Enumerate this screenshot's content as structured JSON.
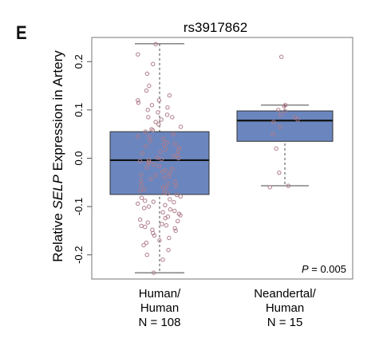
{
  "panel_label": "E",
  "chart_data": {
    "type": "box",
    "title": "rs3917862",
    "ylabel_pre": "Relative ",
    "ylabel_italic": "SELP",
    "ylabel_post": " Expression in Artery",
    "ylim": [
      -0.25,
      0.25
    ],
    "yticks": [
      "-0.2",
      "-0.1",
      "0.0",
      "0.1",
      "0.2"
    ],
    "ytick_values": [
      -0.2,
      -0.1,
      0.0,
      0.1,
      0.2
    ],
    "annotation_italic": "P",
    "annotation_rest": " = 0.005",
    "box_color": "#6b86be",
    "point_color": "#b07c8a",
    "groups": [
      {
        "label_lines": [
          "Human/",
          "Human",
          "N = 108"
        ],
        "whisker_low": -0.237,
        "q1": -0.075,
        "median": -0.004,
        "q3": 0.055,
        "whisker_high": 0.237,
        "points": [
          0.236,
          0.215,
          0.195,
          0.175,
          0.15,
          0.14,
          0.13,
          0.12,
          0.115,
          0.11,
          0.105,
          0.1,
          0.095,
          0.09,
          0.085,
          0.08,
          0.075,
          0.07,
          0.065,
          0.06,
          0.058,
          0.055,
          0.05,
          0.045,
          0.04,
          0.036,
          0.032,
          0.028,
          0.025,
          0.022,
          0.019,
          0.016,
          0.013,
          0.01,
          0.007,
          0.004,
          0.001,
          -0.002,
          -0.004,
          -0.006,
          -0.008,
          -0.01,
          -0.013,
          -0.016,
          -0.019,
          -0.022,
          -0.025,
          -0.028,
          -0.031,
          -0.034,
          -0.037,
          -0.04,
          -0.043,
          -0.046,
          -0.049,
          -0.052,
          -0.055,
          -0.058,
          -0.061,
          -0.064,
          -0.067,
          -0.07,
          -0.073,
          -0.076,
          -0.079,
          -0.082,
          -0.085,
          -0.088,
          -0.091,
          -0.094,
          -0.097,
          -0.1,
          -0.103,
          -0.106,
          -0.109,
          -0.112,
          -0.115,
          -0.118,
          -0.121,
          -0.124,
          -0.127,
          -0.13,
          -0.133,
          -0.136,
          -0.139,
          -0.142,
          -0.145,
          -0.148,
          -0.15,
          -0.155,
          -0.16,
          -0.165,
          -0.17,
          -0.175,
          -0.18,
          -0.19,
          -0.2,
          -0.21,
          -0.237,
          0.03,
          -0.035,
          0.0,
          0.12,
          -0.14,
          0.085,
          -0.06,
          0.045,
          -0.09
        ]
      },
      {
        "label_lines": [
          "Neandertal/",
          "Human",
          "N = 15"
        ],
        "whisker_low": -0.057,
        "q1": 0.035,
        "median": 0.078,
        "q3": 0.098,
        "whisker_high": 0.11,
        "points": [
          0.21,
          0.11,
          0.108,
          0.1,
          0.098,
          0.09,
          0.085,
          0.08,
          0.075,
          0.065,
          0.05,
          0.02,
          -0.03,
          -0.057,
          -0.06
        ]
      }
    ]
  }
}
